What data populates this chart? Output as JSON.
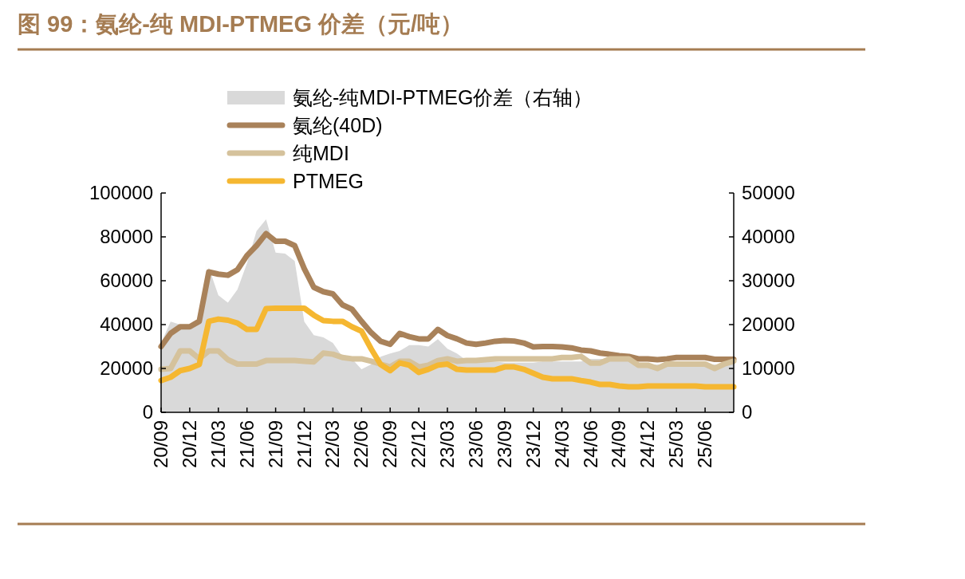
{
  "chart_data": {
    "type": "line",
    "title": "图 99：氨纶-纯 MDI-PTMEG 价差（元/吨）",
    "categories": [
      "20/09",
      null,
      null,
      "20/12",
      null,
      null,
      "21/03",
      null,
      null,
      "21/06",
      null,
      null,
      "21/09",
      null,
      null,
      "21/12",
      null,
      null,
      "22/03",
      null,
      null,
      "22/06",
      null,
      null,
      "22/09",
      null,
      null,
      "22/12",
      null,
      null,
      "23/03",
      null,
      null,
      "23/06",
      null,
      null,
      "23/09",
      null,
      null,
      "23/12",
      null,
      null,
      "24/03",
      null,
      null,
      "24/06",
      null,
      null,
      "24/09",
      null,
      null,
      "24/12",
      null,
      null,
      "25/03",
      null,
      null,
      "25/06",
      null,
      null,
      null
    ],
    "series": [
      {
        "name": "氨纶-纯MDI-PTMEG价差（右轴）",
        "type": "area",
        "axis": "y2",
        "color": "#d9d9d9",
        "values": [
          15800,
          20700,
          20000,
          19500,
          21800,
          33000,
          26700,
          25000,
          28000,
          34000,
          41300,
          44000,
          36400,
          36200,
          34500,
          20700,
          17600,
          17100,
          15800,
          12700,
          12200,
          9800,
          10900,
          12700,
          13400,
          14000,
          15300,
          15300,
          15000,
          16700,
          14500,
          13400,
          11800,
          11600,
          11600,
          11600,
          11300,
          11300,
          11300,
          11300,
          11600,
          11600,
          11600,
          11600,
          11600,
          12200,
          12200,
          12200,
          12200,
          12200,
          10900,
          10900,
          10900,
          10900,
          10900,
          10900,
          10900,
          10900,
          10900,
          10900,
          10900
        ]
      },
      {
        "name": "氨纶(40D)",
        "color": "#a9825a",
        "values": [
          30000,
          36000,
          39000,
          39000,
          41500,
          64000,
          63000,
          62500,
          65000,
          71500,
          76000,
          81500,
          78000,
          78000,
          76000,
          65500,
          57000,
          55000,
          54000,
          49000,
          47000,
          41500,
          36400,
          32400,
          31000,
          36000,
          34500,
          33500,
          33500,
          37800,
          35000,
          33500,
          31600,
          31000,
          31600,
          32400,
          32700,
          32500,
          31600,
          29800,
          30000,
          30000,
          29800,
          29400,
          28400,
          28000,
          27000,
          26500,
          25800,
          25500,
          24400,
          24400,
          24000,
          24400,
          25000,
          25000,
          25000,
          25000,
          24200,
          24200,
          24200
        ]
      },
      {
        "name": "纯MDI",
        "color": "#d5c29c",
        "values": [
          19600,
          20000,
          28000,
          28000,
          24400,
          28000,
          28000,
          24000,
          22000,
          22000,
          22000,
          23600,
          23600,
          23600,
          23600,
          23300,
          23000,
          27000,
          26500,
          25000,
          24400,
          24400,
          23300,
          22000,
          20700,
          23300,
          23300,
          20700,
          21500,
          23600,
          24400,
          23300,
          23600,
          23600,
          24000,
          24400,
          24400,
          24400,
          24400,
          24400,
          24400,
          24400,
          25000,
          25000,
          25500,
          22500,
          22500,
          24400,
          24400,
          24400,
          21500,
          21500,
          20000,
          22000,
          22000,
          22000,
          22000,
          22000,
          20000,
          22000,
          23300
        ]
      },
      {
        "name": "PTMEG",
        "color": "#f5b731",
        "values": [
          14500,
          16000,
          19000,
          20000,
          21800,
          41500,
          42500,
          42000,
          40700,
          37800,
          37800,
          47300,
          47500,
          47500,
          47500,
          47500,
          44300,
          41800,
          41500,
          41500,
          39000,
          37000,
          29000,
          21800,
          19000,
          22500,
          21500,
          18200,
          19600,
          21500,
          22000,
          19600,
          19300,
          19300,
          19300,
          19300,
          20700,
          20700,
          19600,
          17800,
          16000,
          15300,
          15300,
          15300,
          14500,
          13800,
          12700,
          12700,
          12000,
          11600,
          11600,
          12000,
          12000,
          12000,
          12000,
          12000,
          12000,
          11600,
          11600,
          11600,
          11600
        ]
      }
    ],
    "ylim": [
      0,
      100000
    ],
    "yticks": [
      0,
      20000,
      40000,
      60000,
      80000,
      100000
    ],
    "y2lim": [
      0,
      50000
    ],
    "y2ticks": [
      0,
      10000,
      20000,
      30000,
      40000,
      50000
    ],
    "legend": "top",
    "grid": false
  }
}
